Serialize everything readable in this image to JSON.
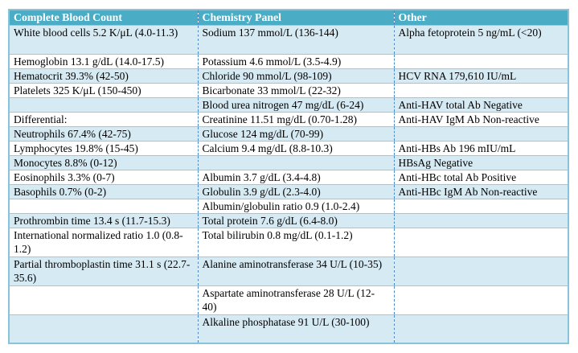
{
  "table": {
    "columns": [
      "Complete Blood Count",
      "Chemistry Panel",
      "Other"
    ],
    "rows": [
      {
        "cells": [
          "White blood cells 5.2 K/μL (4.0-11.3)",
          "Sodium 137 mmol/L (136-144)",
          "Alpha fetoprotein 5 ng/mL (<20)"
        ]
      },
      {
        "cells": [
          "Hemoglobin 13.1 g/dL (14.0-17.5)",
          "Potassium 4.6 mmol/L (3.5-4.9)",
          ""
        ]
      },
      {
        "cells": [
          "Hematocrit 39.3% (42-50)",
          "Chloride 90 mmol/L (98-109)",
          "HCV RNA 179,610 IU/mL"
        ]
      },
      {
        "cells": [
          "Platelets 325 K/μL (150-450)",
          "Bicarbonate 33 mmol/L (22-32)",
          ""
        ]
      },
      {
        "cells": [
          "",
          "Blood urea nitrogen 47 mg/dL (6-24)",
          "Anti-HAV total Ab Negative"
        ]
      },
      {
        "cells": [
          "Differential:",
          "Creatinine 11.51 mg/dL (0.70-1.28)",
          "Anti-HAV IgM Ab Non-reactive"
        ]
      },
      {
        "cells": [
          "Neutrophils 67.4% (42-75)",
          "Glucose 124 mg/dL (70-99)",
          ""
        ]
      },
      {
        "cells": [
          "Lymphocytes 19.8% (15-45)",
          "Calcium 9.4 mg/dL (8.8-10.3)",
          "Anti-HBs Ab 196 mIU/mL"
        ]
      },
      {
        "cells": [
          "Monocytes 8.8% (0-12)",
          "",
          "HBsAg Negative"
        ]
      },
      {
        "cells": [
          "Eosinophils 3.3% (0-7)",
          "Albumin 3.7 g/dL (3.4-4.8)",
          "Anti-HBc total Ab Positive"
        ]
      },
      {
        "cells": [
          "Basophils 0.7% (0-2)",
          "Globulin 3.9 g/dL (2.3-4.0)",
          "Anti-HBc IgM Ab Non-reactive"
        ]
      },
      {
        "cells": [
          "",
          "Albumin/globulin ratio 0.9 (1.0-2.4)",
          ""
        ]
      },
      {
        "cells": [
          "Prothrombin time 13.4 s (11.7-15.3)",
          "Total protein 7.6 g/dL (6.4-8.0)",
          ""
        ]
      },
      {
        "cells": [
          "International normalized ratio 1.0 (0.8-1.2)",
          "Total bilirubin 0.8 mg/dL (0.1-1.2)",
          ""
        ]
      },
      {
        "cells": [
          "Partial thromboplastin time 31.1 s (22.7-35.6)",
          "Alanine aminotransferase 34 U/L (10-35)",
          ""
        ]
      },
      {
        "cells": [
          "",
          "Aspartate aminotransferase 28 U/L (12-40)",
          ""
        ]
      },
      {
        "cells": [
          "",
          "Alkaline phosphatase 91 U/L (30-100)",
          ""
        ]
      }
    ],
    "colors": {
      "header_bg": "#4BACC6",
      "header_text": "#FFFFFF",
      "band_bg": "#D6EAF3",
      "row_border": "#92CDDC",
      "outer_border": "#87C3D9",
      "column_divider": "#4A89C8",
      "body_text": "#000000"
    }
  }
}
